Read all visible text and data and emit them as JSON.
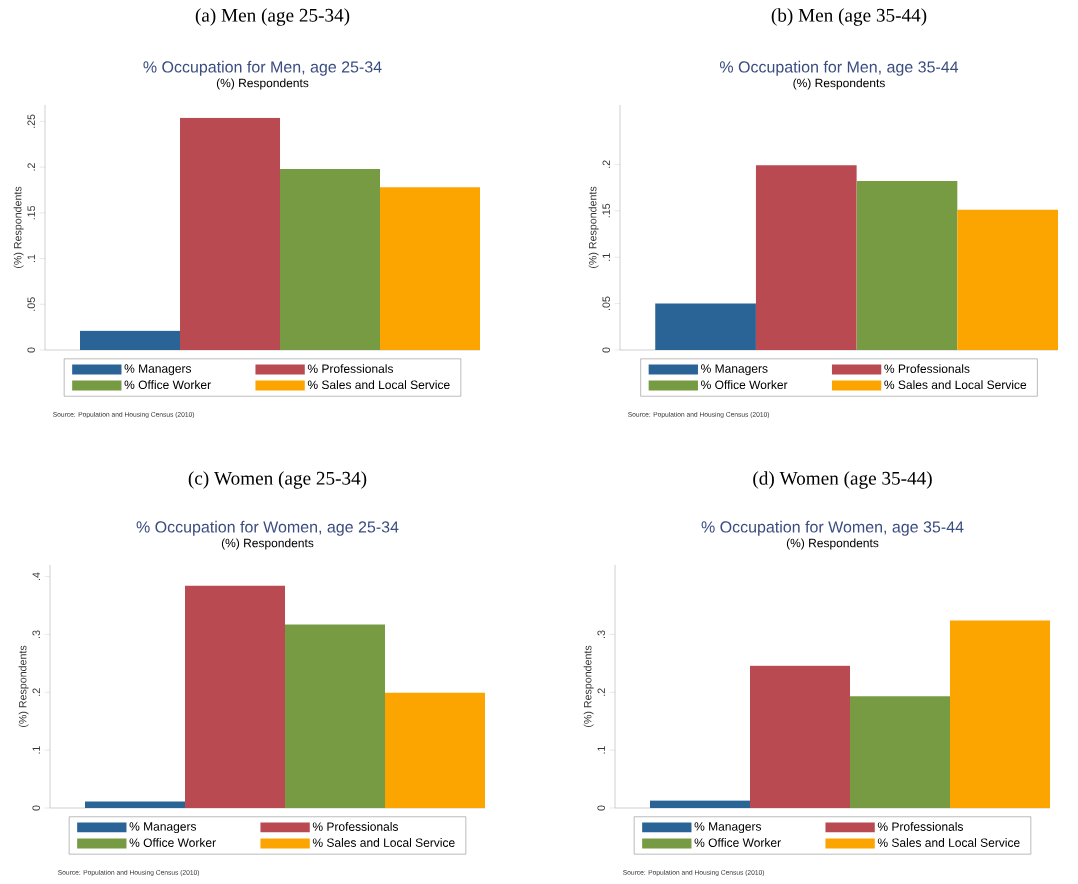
{
  "chart_data": [
    {
      "type": "bar",
      "title": "% Occupation for Men, age 25-34",
      "subtitle": "(%) Respondents",
      "ylabel": "(%) Respondents",
      "categories": [
        null
      ],
      "series": [
        {
          "name": "% Managers",
          "color": "#2a6496",
          "values": [
            0.021
          ]
        },
        {
          "name": "% Professionals",
          "color": "#b94a51",
          "values": [
            0.254
          ]
        },
        {
          "name": "% Office Worker",
          "color": "#779b43",
          "values": [
            0.198
          ]
        },
        {
          "name": "% Sales and Local Service",
          "color": "#fca400",
          "values": [
            0.178
          ]
        }
      ],
      "ylim": [
        0,
        0.268
      ],
      "yticks": [
        0,
        {
          "value": 0.05,
          "label": ".05"
        },
        {
          "value": 0.1,
          "label": ".1"
        },
        {
          "value": 0.15,
          "label": ".15"
        },
        {
          "value": 0.2,
          "label": ".2"
        },
        {
          "value": 0.25,
          "label": ".25"
        }
      ],
      "legend": "bottom",
      "annotations": [
        "(a) Men (age 25-34)",
        "Source: Population and Housing Census (2010)"
      ]
    },
    {
      "type": "bar",
      "title": "% Occupation for Men, age 35-44",
      "subtitle": "(%) Respondents",
      "ylabel": "(%) Respondents",
      "categories": [
        null
      ],
      "series": [
        {
          "name": "% Managers",
          "color": "#2a6496",
          "values": [
            0.05
          ]
        },
        {
          "name": "% Professionals",
          "color": "#b94a51",
          "values": [
            0.199
          ]
        },
        {
          "name": "% Office Worker",
          "color": "#779b43",
          "values": [
            0.182
          ]
        },
        {
          "name": "% Sales and Local Service",
          "color": "#fca400",
          "values": [
            0.151
          ]
        }
      ],
      "ylim": [
        0,
        0.264
      ],
      "yticks": [
        0,
        {
          "value": 0.05,
          "label": ".05"
        },
        {
          "value": 0.1,
          "label": ".1"
        },
        {
          "value": 0.15,
          "label": ".15"
        },
        {
          "value": 0.2,
          "label": ".2"
        }
      ],
      "legend": "bottom",
      "annotations": [
        "(b) Men (age 35-44)",
        "Source: Population and Housing Census (2010)"
      ]
    },
    {
      "type": "bar",
      "title": "% Occupation for Women, age 25-34",
      "subtitle": "(%) Respondents",
      "ylabel": "(%) Respondents",
      "categories": [
        null
      ],
      "series": [
        {
          "name": "% Managers",
          "color": "#2a6496",
          "values": [
            0.011
          ]
        },
        {
          "name": "% Professionals",
          "color": "#b94a51",
          "values": [
            0.384
          ]
        },
        {
          "name": "% Office Worker",
          "color": "#779b43",
          "values": [
            0.317
          ]
        },
        {
          "name": "% Sales and Local Service",
          "color": "#fca400",
          "values": [
            0.199
          ]
        }
      ],
      "ylim": [
        0,
        0.42
      ],
      "yticks": [
        0,
        {
          "value": 0.1,
          "label": ".1"
        },
        {
          "value": 0.2,
          "label": ".2"
        },
        {
          "value": 0.3,
          "label": ".3"
        },
        {
          "value": 0.4,
          "label": ".4"
        }
      ],
      "legend": "bottom",
      "annotations": [
        "(c) Women (age 25-34)",
        "Source: Population and Housing Census (2010)"
      ]
    },
    {
      "type": "bar",
      "title": "% Occupation for Women, age 35-44",
      "subtitle": "(%) Respondents",
      "ylabel": "(%) Respondents",
      "categories": [
        null
      ],
      "series": [
        {
          "name": "% Managers",
          "color": "#2a6496",
          "values": [
            0.013
          ]
        },
        {
          "name": "% Professionals",
          "color": "#b94a51",
          "values": [
            0.246
          ]
        },
        {
          "name": "% Office Worker",
          "color": "#779b43",
          "values": [
            0.193
          ]
        },
        {
          "name": "% Sales and Local Service",
          "color": "#fca400",
          "values": [
            0.324
          ]
        }
      ],
      "ylim": [
        0,
        0.42
      ],
      "yticks": [
        0,
        {
          "value": 0.1,
          "label": ".1"
        },
        {
          "value": 0.2,
          "label": ".2"
        },
        {
          "value": 0.3,
          "label": ".3"
        }
      ],
      "legend": "bottom",
      "annotations": [
        "(d) Women (age 35-44)",
        "Source: Population and Housing Census (2010)"
      ]
    }
  ]
}
